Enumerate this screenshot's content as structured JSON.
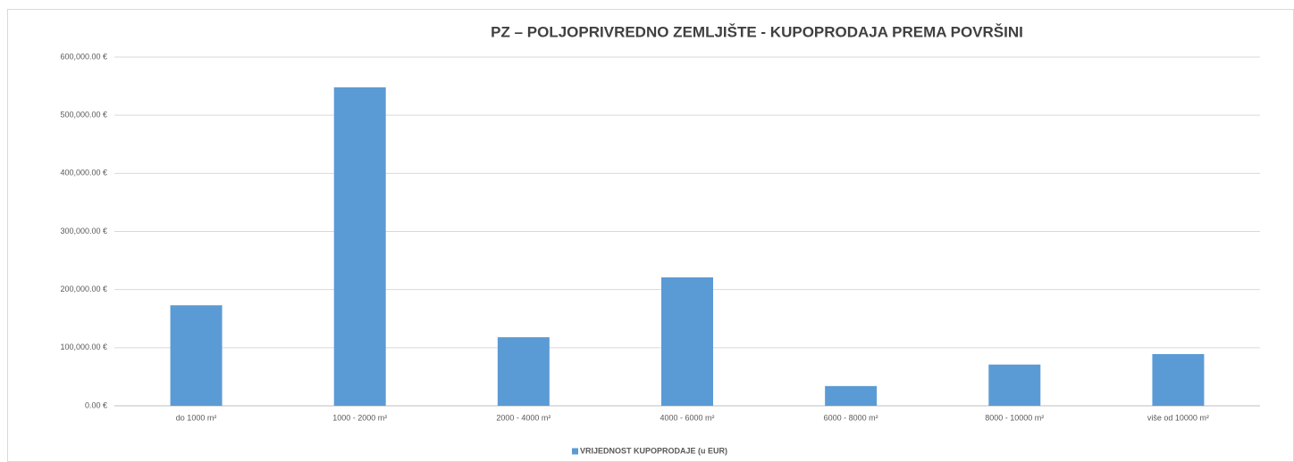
{
  "chart_data": {
    "type": "bar",
    "title": "PZ – POLJOPRIVREDNO ZEMLJIŠTE - KUPOPRODAJA PREMA POVRŠINI",
    "categories": [
      "do 1000 m²",
      "1000 - 2000 m²",
      "2000 - 4000 m²",
      "4000 - 6000 m²",
      "6000 - 8000 m²",
      "8000 - 10000 m²",
      "više od 10000 m²"
    ],
    "series": [
      {
        "name": "VRIJEDNOST KUPOPRODAJE (u EUR)",
        "color": "#5b9bd5",
        "values": [
          173000,
          548000,
          118000,
          221000,
          34000,
          71000,
          89000
        ]
      }
    ],
    "ylim": [
      0,
      600000
    ],
    "yticks": [
      {
        "value": 0,
        "label": "0.00 €"
      },
      {
        "value": 100000,
        "label": "100,000.00 €"
      },
      {
        "value": 200000,
        "label": "200,000.00 €"
      },
      {
        "value": 300000,
        "label": "300,000.00 €"
      },
      {
        "value": 400000,
        "label": "400,000.00 €"
      },
      {
        "value": 500000,
        "label": "500,000.00 €"
      },
      {
        "value": 600000,
        "label": "600,000.00 €"
      }
    ],
    "grid": true,
    "legend": "bottom"
  }
}
